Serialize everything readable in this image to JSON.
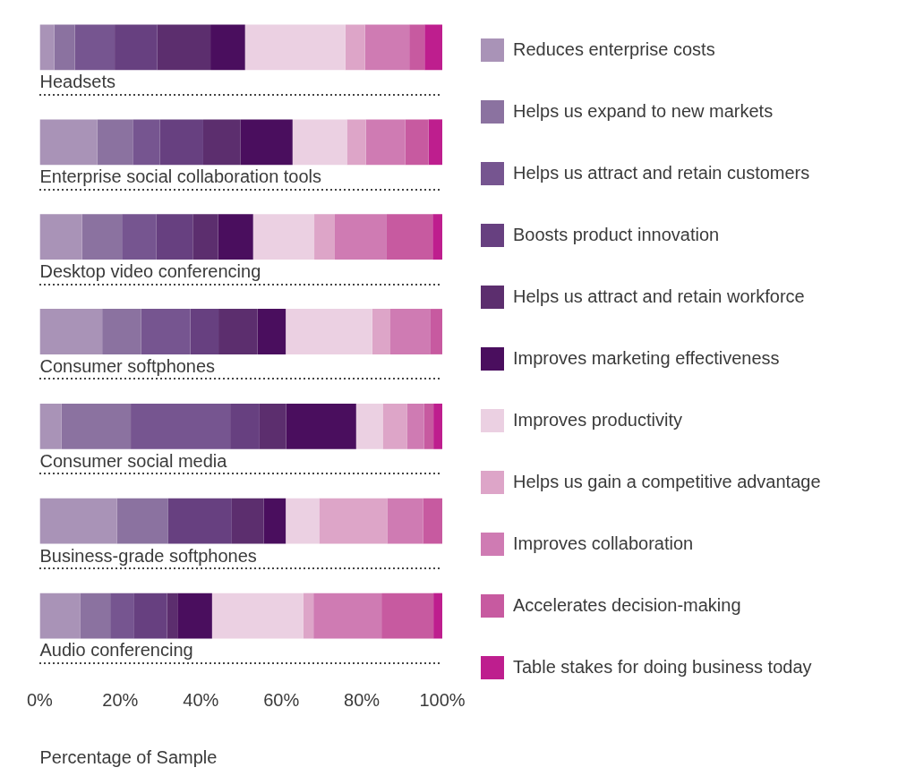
{
  "chart_data": {
    "type": "bar",
    "orientation": "horizontal",
    "stacked": true,
    "categories": [
      "Headsets",
      "Enterprise social collaboration tools",
      "Desktop video conferencing",
      "Consumer softphones",
      "Consumer social media",
      "Business-grade softphones",
      "Audio conferencing"
    ],
    "series": [
      {
        "name": "Reduces enterprise costs",
        "color": "#a993b7",
        "values": [
          3.6,
          14.3,
          10.5,
          15.5,
          5.4,
          19.2,
          10.1
        ]
      },
      {
        "name": "Helps us expand to new markets",
        "color": "#8b72a0",
        "values": [
          5.1,
          8.8,
          9.9,
          9.7,
          17.2,
          12.7,
          7.4
        ]
      },
      {
        "name": "Helps us attract and retain customers",
        "color": "#765590",
        "values": [
          9.9,
          6.7,
          8.5,
          12.2,
          24.7,
          0,
          5.8
        ]
      },
      {
        "name": "Boosts product innovation",
        "color": "#674080",
        "values": [
          10.6,
          10.8,
          9.1,
          7.0,
          7.3,
          15.8,
          8.3
        ]
      },
      {
        "name": "Helps us attract and retain workforce",
        "color": "#5c2e6e",
        "values": [
          13.2,
          9.3,
          6.3,
          9.7,
          6.6,
          7.9,
          2.6
        ]
      },
      {
        "name": "Improves marketing effectiveness",
        "color": "#4a0e5e",
        "values": [
          8.6,
          12.9,
          8.7,
          7.0,
          17.4,
          5.5,
          8.6
        ]
      },
      {
        "name": "Improves productivity",
        "color": "#ebd0e2",
        "values": [
          24.9,
          13.5,
          15.2,
          21.5,
          6.6,
          8.3,
          22.7
        ]
      },
      {
        "name": "Helps us gain a competitive advantage",
        "color": "#dda5c8",
        "values": [
          4.9,
          4.7,
          5.1,
          4.5,
          6.1,
          16.9,
          2.5
        ]
      },
      {
        "name": "Improves collaboration",
        "color": "#cf7bb3",
        "values": [
          11.0,
          9.8,
          12.9,
          10.0,
          4.2,
          8.9,
          16.9
        ]
      },
      {
        "name": "Accelerates decision-making",
        "color": "#c75aa0",
        "values": [
          3.8,
          5.8,
          11.4,
          2.9,
          2.3,
          4.8,
          12.9
        ]
      },
      {
        "name": "Table stakes for doing business today",
        "color": "#be1e8e",
        "values": [
          4.4,
          3.4,
          2.4,
          0,
          2.2,
          0,
          2.2
        ]
      }
    ],
    "xlim": [
      0,
      100
    ],
    "xticks": [
      {
        "value": 0,
        "label": "0%"
      },
      {
        "value": 20,
        "label": "20%"
      },
      {
        "value": 40,
        "label": "40%"
      },
      {
        "value": 60,
        "label": "60%"
      },
      {
        "value": 80,
        "label": "80%"
      },
      {
        "value": 100,
        "label": "100%"
      }
    ],
    "xlabel": "Percentage of Sample",
    "grid": "y",
    "legend": "right"
  }
}
